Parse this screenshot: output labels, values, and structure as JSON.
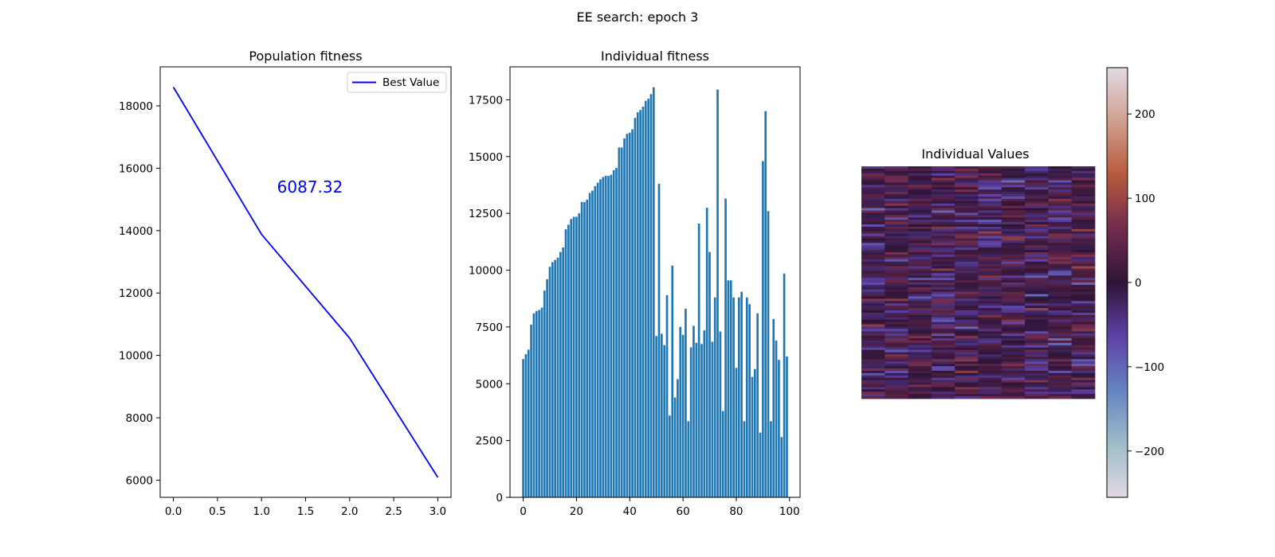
{
  "figure": {
    "suptitle": "EE search: epoch 3"
  },
  "chart_data": [
    {
      "type": "line",
      "title": "Population fitness",
      "xlabel": "",
      "ylabel": "",
      "x": [
        0,
        1,
        2,
        3
      ],
      "series": [
        {
          "name": "Best Value",
          "values": [
            18600,
            13880,
            10550,
            6087.32
          ],
          "color": "#0000ff"
        }
      ],
      "xlim": [
        -0.15,
        3.15
      ],
      "ylim": [
        5450,
        19250
      ],
      "xticks": [
        0.0,
        0.5,
        1.0,
        1.5,
        2.0,
        2.5,
        3.0
      ],
      "xtick_labels": [
        "0.0",
        "0.5",
        "1.0",
        "1.5",
        "2.0",
        "2.5",
        "3.0"
      ],
      "yticks": [
        6000,
        8000,
        10000,
        12000,
        14000,
        16000,
        18000
      ],
      "ytick_labels": [
        "6000",
        "8000",
        "10000",
        "12000",
        "14000",
        "16000",
        "18000"
      ],
      "legend": "top-right",
      "grid": false,
      "annotation": {
        "text": "6087.32",
        "x": 1.55,
        "y": 15400,
        "color": "#0000ff"
      }
    },
    {
      "type": "bar",
      "title": "Individual fitness",
      "xlabel": "",
      "ylabel": "",
      "x": [
        0,
        1,
        2,
        3,
        4,
        5,
        6,
        7,
        8,
        9,
        10,
        11,
        12,
        13,
        14,
        15,
        16,
        17,
        18,
        19,
        20,
        21,
        22,
        23,
        24,
        25,
        26,
        27,
        28,
        29,
        30,
        31,
        32,
        33,
        34,
        35,
        36,
        37,
        38,
        39,
        40,
        41,
        42,
        43,
        44,
        45,
        46,
        47,
        48,
        49,
        50,
        51,
        52,
        53,
        54,
        55,
        56,
        57,
        58,
        59,
        60,
        61,
        62,
        63,
        64,
        65,
        66,
        67,
        68,
        69,
        70,
        71,
        72,
        73,
        74,
        75,
        76,
        77,
        78,
        79,
        80,
        81,
        82,
        83,
        84,
        85,
        86,
        87,
        88,
        89,
        90,
        91,
        92,
        93,
        94,
        95,
        96,
        97,
        98,
        99
      ],
      "values": [
        6087,
        6300,
        6500,
        7600,
        8100,
        8200,
        8250,
        8350,
        9100,
        9600,
        10150,
        10350,
        10450,
        10550,
        10800,
        11000,
        11800,
        12000,
        12250,
        12350,
        12350,
        12500,
        13000,
        13000,
        13100,
        13400,
        13500,
        13700,
        13850,
        14000,
        14100,
        14150,
        14150,
        14200,
        14400,
        14500,
        15400,
        15400,
        15800,
        16000,
        16050,
        16200,
        16700,
        16950,
        17050,
        17200,
        17450,
        17550,
        17750,
        18050,
        7100,
        13800,
        7200,
        6700,
        8900,
        3600,
        10200,
        4400,
        5200,
        7500,
        7150,
        8300,
        3350,
        6600,
        7550,
        6800,
        12050,
        6750,
        7350,
        12750,
        10800,
        6850,
        8800,
        17950,
        7300,
        3800,
        13150,
        9550,
        9550,
        8800,
        5700,
        8800,
        9050,
        3350,
        8800,
        8500,
        5300,
        5650,
        8100,
        2850,
        14800,
        17000,
        12600,
        3350,
        7850,
        6900,
        6050,
        2650,
        9850,
        6200
      ],
      "xlim": [
        -4.95,
        103.95
      ],
      "ylim": [
        0,
        18950
      ],
      "xticks": [
        0,
        20,
        40,
        60,
        80,
        100
      ],
      "xtick_labels": [
        "0",
        "20",
        "40",
        "60",
        "80",
        "100"
      ],
      "yticks": [
        0,
        2500,
        5000,
        7500,
        10000,
        12500,
        15000,
        17500
      ],
      "ytick_labels": [
        "0",
        "2500",
        "5000",
        "7500",
        "10000",
        "12500",
        "15000",
        "17500"
      ],
      "bar_color": "#1f77b4",
      "grid": false
    },
    {
      "type": "heatmap",
      "title": "Individual Values",
      "colormap": "twilight",
      "columns": 10,
      "rows": 100,
      "colorbar": {
        "range": [
          -255,
          255
        ],
        "ticks": [
          -200,
          -100,
          0,
          100,
          200
        ],
        "tick_labels": [
          "−200",
          "−100",
          "0",
          "100",
          "200"
        ],
        "colors": [
          "#e2d9e2",
          "#9ebcc8",
          "#6483c1",
          "#5e42a6",
          "#2f1437",
          "#712b4f",
          "#b65a3c",
          "#d19f8f",
          "#e2d9e2"
        ]
      }
    }
  ]
}
